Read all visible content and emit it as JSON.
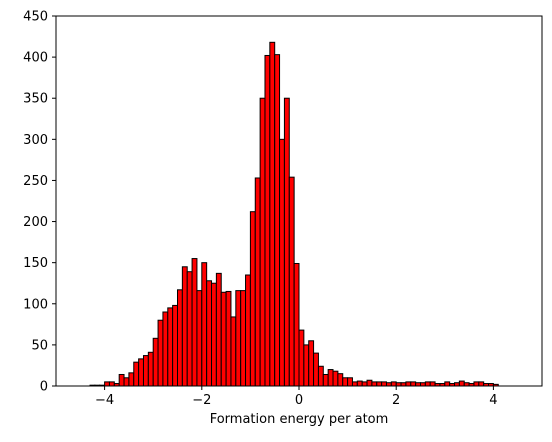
{
  "chart_data": {
    "type": "bar",
    "subtype": "histogram",
    "title": "",
    "xlabel": "Formation energy per atom",
    "ylabel": "",
    "xlim": [
      -5.0,
      5.0
    ],
    "ylim": [
      0,
      450
    ],
    "xticks": [
      -4,
      -2,
      0,
      2,
      4
    ],
    "yticks": [
      0,
      50,
      100,
      150,
      200,
      250,
      300,
      350,
      400,
      450
    ],
    "grid": false,
    "legend": "none",
    "bar_color": "#ff0000",
    "edge_color": "#000000",
    "bins": {
      "start": -4.3,
      "width": 0.1,
      "counts": [
        1,
        1,
        1,
        5,
        5,
        3,
        14,
        10,
        16,
        29,
        33,
        37,
        41,
        58,
        80,
        90,
        95,
        98,
        117,
        145,
        139,
        155,
        116,
        150,
        128,
        125,
        137,
        114,
        115,
        84,
        116,
        116,
        135,
        212,
        253,
        350,
        402,
        418,
        403,
        300,
        350,
        254,
        149,
        68,
        50,
        55,
        40,
        24,
        14,
        20,
        18,
        15,
        10,
        10,
        5,
        6,
        5,
        7,
        5,
        5,
        5,
        4,
        5,
        4,
        4,
        5,
        5,
        4,
        4,
        5,
        5,
        3,
        3,
        5,
        3,
        4,
        6,
        4,
        3,
        5,
        5,
        3,
        3,
        2
      ]
    }
  }
}
